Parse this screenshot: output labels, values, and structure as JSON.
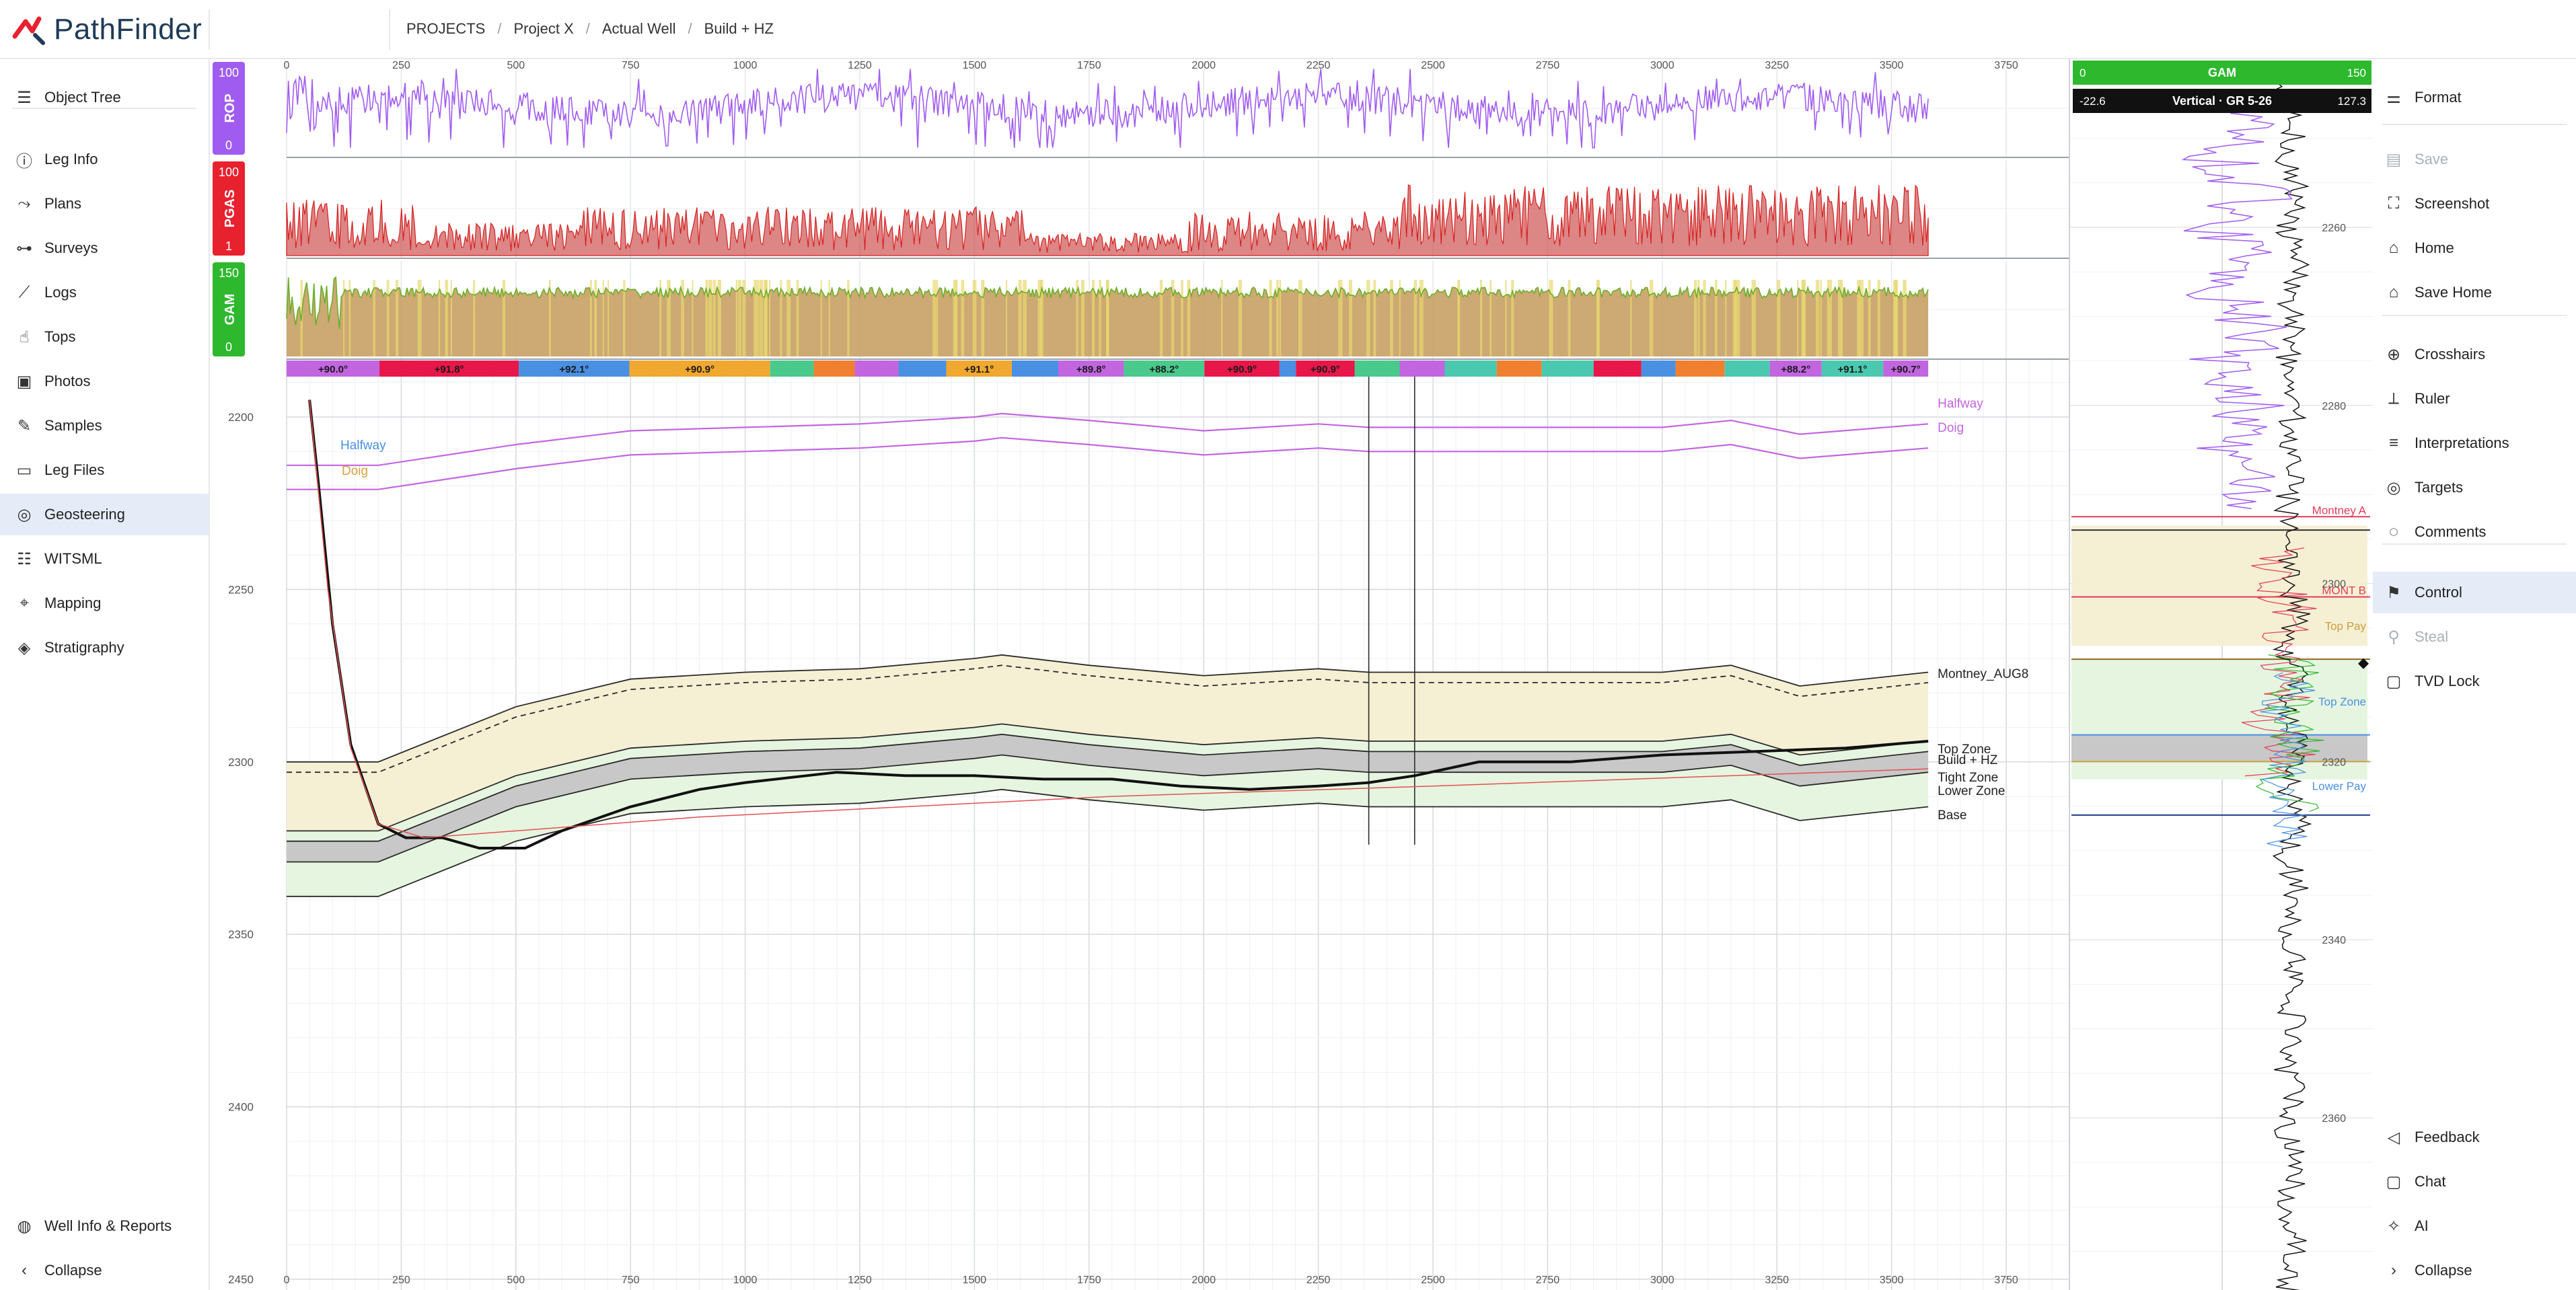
{
  "app": {
    "name": "PathFinder"
  },
  "breadcrumb": [
    "PROJECTS",
    "Project X",
    "Actual Well",
    "Build + HZ"
  ],
  "sidebar": {
    "items": [
      {
        "label": "Object Tree",
        "icon": "menu-icon"
      },
      {
        "label": "Leg Info",
        "icon": "info-icon"
      },
      {
        "label": "Plans",
        "icon": "route-icon"
      },
      {
        "label": "Surveys",
        "icon": "survey-icon"
      },
      {
        "label": "Logs",
        "icon": "chart-line-icon"
      },
      {
        "label": "Tops",
        "icon": "hand-pointer-icon"
      },
      {
        "label": "Photos",
        "icon": "photos-icon"
      },
      {
        "label": "Samples",
        "icon": "pipette-icon"
      },
      {
        "label": "Leg Files",
        "icon": "folder-icon"
      },
      {
        "label": "Geosteering",
        "icon": "geosteering-icon"
      },
      {
        "label": "WITSML",
        "icon": "database-icon"
      },
      {
        "label": "Mapping",
        "icon": "map-icon"
      },
      {
        "label": "Stratigraphy",
        "icon": "layers-icon"
      }
    ],
    "active": "Geosteering",
    "footer": [
      {
        "label": "Well Info & Reports",
        "icon": "globe-icon"
      },
      {
        "label": "Collapse",
        "icon": "chevron-left-icon"
      }
    ]
  },
  "right_sidebar": {
    "items": [
      {
        "label": "Format",
        "icon": "sliders-icon",
        "disabled": false
      },
      {
        "label": "Save",
        "icon": "save-icon",
        "disabled": true
      },
      {
        "label": "Screenshot",
        "icon": "screenshot-icon",
        "disabled": false
      },
      {
        "label": "Home",
        "icon": "home-icon",
        "disabled": false
      },
      {
        "label": "Save Home",
        "icon": "home-save-icon",
        "disabled": false
      },
      {
        "label": "Crosshairs",
        "icon": "crosshair-icon",
        "disabled": false
      },
      {
        "label": "Ruler",
        "icon": "ruler-icon",
        "disabled": false
      },
      {
        "label": "Interpretations",
        "icon": "list-icon",
        "disabled": false
      },
      {
        "label": "Targets",
        "icon": "target-icon",
        "disabled": false
      },
      {
        "label": "Comments",
        "icon": "comment-icon",
        "disabled": false
      },
      {
        "label": "Control",
        "icon": "control-icon",
        "disabled": false
      },
      {
        "label": "Steal",
        "icon": "steal-icon",
        "disabled": true
      },
      {
        "label": "TVD Lock",
        "icon": "lock-icon",
        "disabled": false
      }
    ],
    "active": "Control",
    "footer": [
      {
        "label": "Feedback",
        "icon": "megaphone-icon"
      },
      {
        "label": "Chat",
        "icon": "chat-icon"
      },
      {
        "label": "AI",
        "icon": "sparkle-icon"
      },
      {
        "label": "Collapse",
        "icon": "chevron-right-icon"
      }
    ]
  },
  "tracks": [
    {
      "label": "ROP",
      "color": "#a05cf0",
      "max": "100",
      "min": "0"
    },
    {
      "label": "PGAS",
      "color": "#e8212f",
      "max": "100",
      "min": "1"
    },
    {
      "label": "GAM",
      "color": "#2eb82e",
      "max": "150",
      "min": "0"
    }
  ],
  "x_axis_ticks": [
    0,
    250,
    500,
    750,
    1000,
    1250,
    1500,
    1750,
    2000,
    2250,
    2500,
    2750,
    3000,
    3250,
    3500,
    3750
  ],
  "y_axis_ticks": [
    2200,
    2250,
    2300,
    2350,
    2400,
    2450
  ],
  "dip_segments": [
    {
      "label": "+90.0°",
      "color": "#c266e0"
    },
    {
      "label": "+91.8°",
      "color": "#e8174a"
    },
    {
      "label": "+92.1°",
      "color": "#4a90e2"
    },
    {
      "label": "+90.9°",
      "color": "#f0a830"
    },
    {
      "label": "",
      "color": "#4ac98c"
    },
    {
      "label": "",
      "color": "#f08030"
    },
    {
      "label": "",
      "color": "#c266e0"
    },
    {
      "label": "",
      "color": "#4a90e2"
    },
    {
      "label": "+91.1°",
      "color": "#f0a830"
    },
    {
      "label": "",
      "color": "#4a90e2"
    },
    {
      "label": "+89.8°",
      "color": "#c266e0"
    },
    {
      "label": "+88.2°",
      "color": "#4ac98c"
    },
    {
      "label": "+90.9°",
      "color": "#e8174a"
    },
    {
      "label": "",
      "color": "#4a90e2"
    },
    {
      "label": "+90.9°",
      "color": "#e8174a"
    },
    {
      "label": "",
      "color": "#4ac98c"
    },
    {
      "label": "",
      "color": "#c266e0"
    },
    {
      "label": "",
      "color": "#4ac9b0"
    },
    {
      "label": "",
      "color": "#f08030"
    },
    {
      "label": "",
      "color": "#4ac9b0"
    },
    {
      "label": "",
      "color": "#e8174a"
    },
    {
      "label": "",
      "color": "#4a90e2"
    },
    {
      "label": "",
      "color": "#f08030"
    },
    {
      "label": "",
      "color": "#4ac9b0"
    },
    {
      "label": "+88.2°",
      "color": "#c266e0"
    },
    {
      "label": "+91.1°",
      "color": "#4ac9b0"
    },
    {
      "label": "+90.7°",
      "color": "#c266e0"
    }
  ],
  "formation_labels": {
    "left_halfway": "Halfway",
    "left_doig": "Doig",
    "right_halfway": "Halfway",
    "right_doig": "Doig",
    "montney": "Montney_AUG8",
    "top_zone": "Top Zone",
    "build_hz": "Build + HZ",
    "tight_zone": "Tight Zone",
    "lower_zone": "Lower Zone",
    "base": "Base"
  },
  "vertical_panel": {
    "gam_header": {
      "label": "GAM",
      "min": "0",
      "max": "150"
    },
    "track_header": {
      "label": "Vertical · GR 5-26",
      "min": "-22.6",
      "max": "127.3"
    },
    "depth_ticks": [
      2260,
      2280,
      2300,
      2320,
      2340,
      2360
    ],
    "tops": [
      {
        "label": "Montney A",
        "color": "#e03c5a"
      },
      {
        "label": "MONT B",
        "color": "#e03c5a"
      },
      {
        "label": "Top Pay",
        "color": "#c8a040"
      },
      {
        "label": "Top Zone",
        "color": "#4a90e2"
      },
      {
        "label": "Lower Pay",
        "color": "#4a90e2"
      }
    ]
  },
  "colors": {
    "accent": "#1f3b57",
    "active_bg": "#e5ecf8",
    "montney_fill": "#f5efd4",
    "zone_fill": "#e6f5e0",
    "tight_fill": "#c8c8c8",
    "rop": "#a05cf0",
    "pgas": "#e8212f",
    "gam": "#2eb82e"
  }
}
